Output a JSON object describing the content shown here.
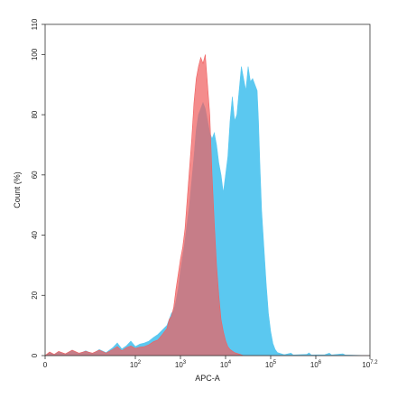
{
  "chart_data": {
    "type": "area",
    "xlabel": "APC-A",
    "ylabel": "Count (%)",
    "x_scale": "log10",
    "xlim": [
      0,
      7.2
    ],
    "ylim": [
      0,
      110
    ],
    "grid": false,
    "x_ticks": [
      {
        "value": 0,
        "base": "0",
        "exp": ""
      },
      {
        "value": 2,
        "base": "10",
        "exp": "2"
      },
      {
        "value": 3,
        "base": "10",
        "exp": "3"
      },
      {
        "value": 4,
        "base": "10",
        "exp": "4"
      },
      {
        "value": 5,
        "base": "10",
        "exp": "5"
      },
      {
        "value": 6,
        "base": "10",
        "exp": "6"
      },
      {
        "value": 7.2,
        "base": "10",
        "exp": "7.2"
      }
    ],
    "y_ticks": [
      0,
      20,
      40,
      60,
      80,
      100,
      110
    ],
    "series": [
      {
        "color": "#5bc8f0",
        "points": [
          [
            0.0,
            0.0
          ],
          [
            0.1,
            1.0
          ],
          [
            0.2,
            0.3
          ],
          [
            0.3,
            1.2
          ],
          [
            0.45,
            0.4
          ],
          [
            0.6,
            1.8
          ],
          [
            0.75,
            0.6
          ],
          [
            0.9,
            1.6
          ],
          [
            1.05,
            0.6
          ],
          [
            1.2,
            2.0
          ],
          [
            1.35,
            1.0
          ],
          [
            1.5,
            2.6
          ],
          [
            1.6,
            4.2
          ],
          [
            1.7,
            2.2
          ],
          [
            1.8,
            3.2
          ],
          [
            1.9,
            4.8
          ],
          [
            2.0,
            3.0
          ],
          [
            2.1,
            3.8
          ],
          [
            2.2,
            4.2
          ],
          [
            2.3,
            4.8
          ],
          [
            2.4,
            6.0
          ],
          [
            2.5,
            7.0
          ],
          [
            2.6,
            8.5
          ],
          [
            2.7,
            10.0
          ],
          [
            2.75,
            12.0
          ],
          [
            2.8,
            14.0
          ],
          [
            2.85,
            15.0
          ],
          [
            2.9,
            18.0
          ],
          [
            2.95,
            22.0
          ],
          [
            3.0,
            28.0
          ],
          [
            3.05,
            33.0
          ],
          [
            3.1,
            38.0
          ],
          [
            3.15,
            44.0
          ],
          [
            3.2,
            50.0
          ],
          [
            3.25,
            58.0
          ],
          [
            3.3,
            66.0
          ],
          [
            3.35,
            75.0
          ],
          [
            3.4,
            80.0
          ],
          [
            3.45,
            82.0
          ],
          [
            3.5,
            84.0
          ],
          [
            3.55,
            82.0
          ],
          [
            3.6,
            78.0
          ],
          [
            3.65,
            74.0
          ],
          [
            3.7,
            72.0
          ],
          [
            3.75,
            74.0
          ],
          [
            3.8,
            70.0
          ],
          [
            3.85,
            64.0
          ],
          [
            3.9,
            60.0
          ],
          [
            3.95,
            54.0
          ],
          [
            4.0,
            60.0
          ],
          [
            4.05,
            66.0
          ],
          [
            4.1,
            78.0
          ],
          [
            4.15,
            86.0
          ],
          [
            4.2,
            78.0
          ],
          [
            4.25,
            80.0
          ],
          [
            4.3,
            88.0
          ],
          [
            4.35,
            96.0
          ],
          [
            4.4,
            92.0
          ],
          [
            4.45,
            88.0
          ],
          [
            4.5,
            96.0
          ],
          [
            4.55,
            91.0
          ],
          [
            4.6,
            92.0
          ],
          [
            4.65,
            90.0
          ],
          [
            4.7,
            88.0
          ],
          [
            4.73,
            78.0
          ],
          [
            4.76,
            64.0
          ],
          [
            4.8,
            48.0
          ],
          [
            4.85,
            36.0
          ],
          [
            4.9,
            24.0
          ],
          [
            4.95,
            14.0
          ],
          [
            5.0,
            8.0
          ],
          [
            5.05,
            4.0
          ],
          [
            5.1,
            2.0
          ],
          [
            5.15,
            1.0
          ],
          [
            5.3,
            0.3
          ],
          [
            5.45,
            0.8
          ],
          [
            5.5,
            0.2
          ],
          [
            5.8,
            0.4
          ],
          [
            5.85,
            0.9
          ],
          [
            5.9,
            0.2
          ],
          [
            6.2,
            0.3
          ],
          [
            6.3,
            0.8
          ],
          [
            6.35,
            0.2
          ],
          [
            6.6,
            0.6
          ],
          [
            6.65,
            0.2
          ],
          [
            7.2,
            0.0
          ]
        ]
      },
      {
        "color": "#f06060",
        "points": [
          [
            0.0,
            0.0
          ],
          [
            0.1,
            1.2
          ],
          [
            0.2,
            0.4
          ],
          [
            0.3,
            1.4
          ],
          [
            0.45,
            0.6
          ],
          [
            0.6,
            1.8
          ],
          [
            0.75,
            0.8
          ],
          [
            0.9,
            1.4
          ],
          [
            1.05,
            0.8
          ],
          [
            1.2,
            1.8
          ],
          [
            1.35,
            0.8
          ],
          [
            1.5,
            2.0
          ],
          [
            1.6,
            3.0
          ],
          [
            1.7,
            1.6
          ],
          [
            1.8,
            2.6
          ],
          [
            1.9,
            3.2
          ],
          [
            2.0,
            2.4
          ],
          [
            2.1,
            2.8
          ],
          [
            2.2,
            3.0
          ],
          [
            2.3,
            3.6
          ],
          [
            2.4,
            4.6
          ],
          [
            2.5,
            5.2
          ],
          [
            2.6,
            7.0
          ],
          [
            2.7,
            9.0
          ],
          [
            2.75,
            12.0
          ],
          [
            2.8,
            13.0
          ],
          [
            2.85,
            16.0
          ],
          [
            2.9,
            22.0
          ],
          [
            2.95,
            27.0
          ],
          [
            3.0,
            32.0
          ],
          [
            3.05,
            36.0
          ],
          [
            3.1,
            42.0
          ],
          [
            3.15,
            52.0
          ],
          [
            3.2,
            62.0
          ],
          [
            3.25,
            72.0
          ],
          [
            3.3,
            84.0
          ],
          [
            3.35,
            92.0
          ],
          [
            3.4,
            96.0
          ],
          [
            3.45,
            99.0
          ],
          [
            3.5,
            97.0
          ],
          [
            3.55,
            100.0
          ],
          [
            3.6,
            90.0
          ],
          [
            3.65,
            80.0
          ],
          [
            3.7,
            60.0
          ],
          [
            3.75,
            44.0
          ],
          [
            3.8,
            30.0
          ],
          [
            3.85,
            20.0
          ],
          [
            3.9,
            12.0
          ],
          [
            3.95,
            8.0
          ],
          [
            4.0,
            5.0
          ],
          [
            4.05,
            3.0
          ],
          [
            4.1,
            2.0
          ],
          [
            4.2,
            1.0
          ],
          [
            4.3,
            0.5
          ],
          [
            4.4,
            0.0
          ],
          [
            7.2,
            0.0
          ]
        ]
      }
    ]
  }
}
